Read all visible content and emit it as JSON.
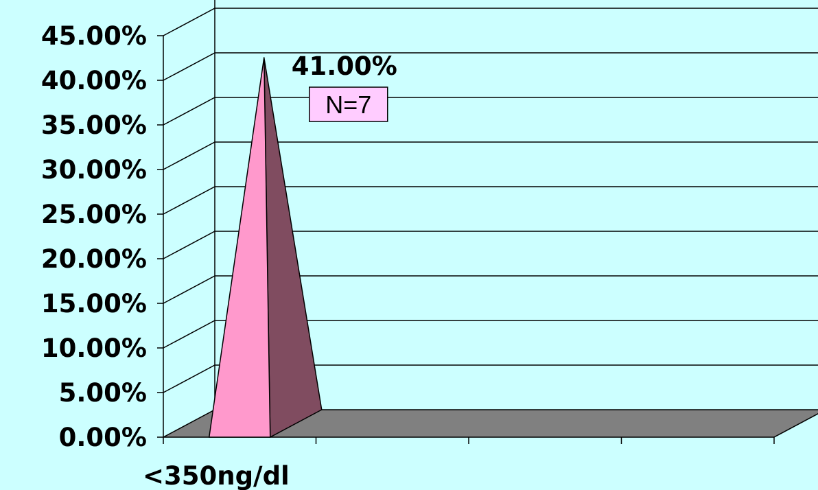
{
  "chart_data": {
    "type": "bar",
    "bar_shape": "pyramid",
    "categories": [
      "<350ng/dl",
      "",
      "",
      ""
    ],
    "values": [
      41.0,
      null,
      null,
      null
    ],
    "ylim": [
      0,
      45
    ],
    "ytick_step": 5,
    "ytick_labels": [
      "0.00%",
      "5.00%",
      "10.00%",
      "15.00%",
      "20.00%",
      "25.00%",
      "30.00%",
      "35.00%",
      "40.00%",
      "45.00%"
    ],
    "data_labels": [
      "41.00%"
    ],
    "annotation": "N=7",
    "title": "",
    "xlabel": "",
    "ylabel": "",
    "grid": true,
    "legend": "none",
    "colors": {
      "background": "#ccffff",
      "floor": "#808080",
      "pyramid_front": "#ff99cc",
      "pyramid_side": "#804c60",
      "annotation_fill": "#ffccff",
      "line": "#000000"
    }
  }
}
